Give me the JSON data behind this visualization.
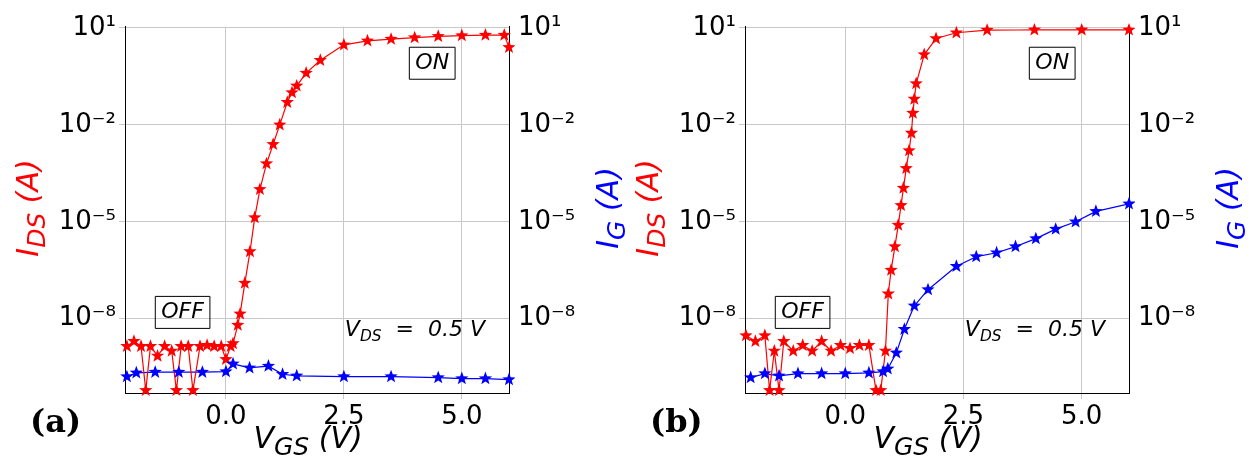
{
  "chart_data": [
    {
      "type": "line",
      "title": "(a)",
      "xlabel": "V$_{GS}$ (V)",
      "ylabel": "I$_{DS}$ (A)",
      "y2label": "I$_{G}$ (A)",
      "xlim": [
        -2.14,
        6
      ],
      "xticks": [
        {
          "value": 0,
          "label": "0.0"
        },
        {
          "value": 2.5,
          "label": "2.5"
        },
        {
          "value": 5,
          "label": "5.0"
        }
      ],
      "ylim": [
        5e-11,
        11
      ],
      "yticks": [
        {
          "value": 1e-08,
          "label": "10⁻⁸"
        },
        {
          "value": 1e-05,
          "label": "10⁻⁵"
        },
        {
          "value": 0.01,
          "label": "10⁻²"
        },
        {
          "value": 10,
          "label": "10¹"
        }
      ],
      "log": true,
      "grid": true,
      "legend": false,
      "marker": "star",
      "line_style": "solid",
      "annotations": [
        "ON",
        "OFF",
        "V$_{DS}$  =  0.5 V"
      ],
      "series": [
        {
          "color": "#ff0000",
          "x": [
            -2.1,
            -1.95,
            -1.8,
            -1.7,
            -1.6,
            -1.45,
            -1.3,
            -1.15,
            -1.05,
            -0.95,
            -0.8,
            -0.7,
            -0.55,
            -0.4,
            -0.25,
            -0.1,
            0.0,
            0.1,
            0.15,
            0.25,
            0.3,
            0.4,
            0.51,
            0.61,
            0.72,
            0.86,
            1.0,
            1.14,
            1.3,
            1.4,
            1.5,
            1.7,
            2.0,
            2.5,
            3.0,
            3.5,
            4.0,
            4.5,
            5.0,
            5.5,
            5.9,
            6.0
          ],
          "values": [
            1.4e-09,
            2e-09,
            1.4e-09,
            6e-11,
            1.4e-09,
            7e-10,
            1.4e-09,
            1e-09,
            6e-11,
            1.4e-09,
            1.4e-09,
            6e-11,
            1.4e-09,
            1.5e-09,
            1.4e-09,
            1.4e-09,
            5.5e-10,
            1.4e-09,
            1.7e-09,
            6.3e-09,
            1.4e-08,
            1.26e-07,
            1.2e-06,
            1.35e-05,
            0.0001,
            0.00063,
            0.0025,
            0.01,
            0.05,
            0.1,
            0.16,
            0.4,
            1,
            3,
            4,
            4.5,
            5,
            5.5,
            5.8,
            6,
            6,
            2.5
          ]
        },
        {
          "color": "#0000ff",
          "x": [
            -2.1,
            -1.9,
            -1.5,
            -1,
            -0.5,
            0,
            0.15,
            0.5,
            0.9,
            1.2,
            1.5,
            2.5,
            3.5,
            4.5,
            5,
            5.5,
            6
          ],
          "values": [
            1.6e-10,
            2.1e-10,
            2.2e-10,
            2.2e-10,
            2.2e-10,
            2.3e-10,
            4e-10,
            3e-10,
            3.4e-10,
            1.9e-10,
            1.7e-10,
            1.6e-10,
            1.6e-10,
            1.5e-10,
            1.4e-10,
            1.4e-10,
            1.3e-10
          ]
        }
      ]
    },
    {
      "type": "line",
      "title": "(b)",
      "xlabel": "V$_{GS}$ (V)",
      "ylabel": "I$_{DS}$ (A)",
      "y2label": "I$_{G}$ (A)",
      "xlim": [
        -2.12,
        6
      ],
      "xticks": [
        {
          "value": 0,
          "label": "0.0"
        },
        {
          "value": 2.5,
          "label": "2.5"
        },
        {
          "value": 5,
          "label": "5.0"
        }
      ],
      "ylim": [
        5e-11,
        11
      ],
      "yticks": [
        {
          "value": 1e-08,
          "label": "10⁻⁸"
        },
        {
          "value": 1e-05,
          "label": "10⁻⁵"
        },
        {
          "value": 0.01,
          "label": "10⁻²"
        },
        {
          "value": 10,
          "label": "10¹"
        }
      ],
      "log": true,
      "grid": true,
      "legend": false,
      "marker": "star",
      "line_style": "solid",
      "annotations": [
        "ON",
        "OFF",
        "V$_{DS}$  =  0.5 V"
      ],
      "series": [
        {
          "color": "#ff0000",
          "x": [
            -2.1,
            -1.9,
            -1.7,
            -1.6,
            -1.5,
            -1.4,
            -1.3,
            -1.1,
            -0.9,
            -0.7,
            -0.5,
            -0.3,
            -0.1,
            0.1,
            0.3,
            0.5,
            0.65,
            0.75,
            0.85,
            0.91,
            0.97,
            1.05,
            1.12,
            1.18,
            1.23,
            1.29,
            1.35,
            1.4,
            1.43,
            1.46,
            1.5,
            1.67,
            1.92,
            2.35,
            3,
            4,
            5,
            6
          ],
          "values": [
            3e-09,
            2e-09,
            3e-09,
            6e-11,
            1e-09,
            6e-11,
            2e-09,
            1e-09,
            1.5e-09,
            1e-09,
            2e-09,
            1e-09,
            1.5e-09,
            1.2e-09,
            1.5e-09,
            1.5e-09,
            6e-11,
            6e-11,
            1e-09,
            5.9e-08,
            3.2e-07,
            1.7e-06,
            7.9e-06,
            3.2e-05,
            0.00011,
            0.00045,
            0.0016,
            0.0056,
            0.023,
            0.063,
            0.19,
            1.5,
            4.7,
            7.1,
            8.5,
            8.7,
            8.7,
            8.7
          ]
        },
        {
          "color": "#0000ff",
          "x": [
            -2.0,
            -1.7,
            -1.4,
            -1.0,
            -0.5,
            0,
            0.5,
            0.8,
            0.9,
            1.08,
            1.25,
            1.46,
            1.75,
            2.35,
            2.77,
            3.2,
            3.6,
            4.03,
            4.45,
            4.87,
            5.3,
            6
          ],
          "values": [
            1.5e-10,
            2e-10,
            1.7e-10,
            2e-10,
            2e-10,
            2e-10,
            2.1e-10,
            2.3e-10,
            2.8e-10,
            8.7e-10,
            4.7e-09,
            2.5e-08,
            7.9e-08,
            4.2e-07,
            8.3e-07,
            1.1e-06,
            1.7e-06,
            3e-06,
            5.9e-06,
            1e-05,
            2.1e-05,
            3.6e-05
          ]
        }
      ]
    }
  ]
}
